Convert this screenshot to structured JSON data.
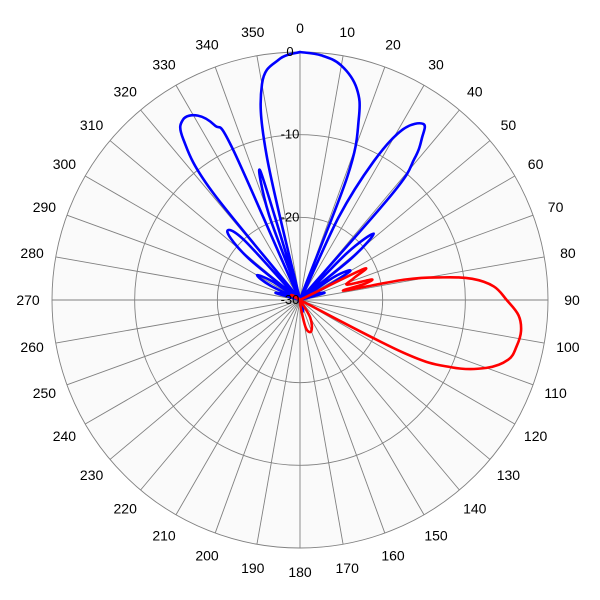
{
  "chart_data": {
    "type": "polar-line",
    "angle_unit": "degrees",
    "angle_zero": "top",
    "angle_direction": "clockwise",
    "angle_ticks": [
      0,
      10,
      20,
      30,
      40,
      50,
      60,
      70,
      80,
      90,
      100,
      110,
      120,
      130,
      140,
      150,
      160,
      170,
      180,
      190,
      200,
      210,
      220,
      230,
      240,
      250,
      260,
      270,
      280,
      290,
      300,
      310,
      320,
      330,
      340,
      350
    ],
    "angle_labels": [
      "0",
      "10",
      "20",
      "30",
      "40",
      "50",
      "60",
      "70",
      "80",
      "90",
      "100",
      "110",
      "120",
      "130",
      "140",
      "150",
      "160",
      "170",
      "180",
      "190",
      "200",
      "210",
      "220",
      "230",
      "240",
      "250",
      "260",
      "270",
      "280",
      "290",
      "300",
      "310",
      "320",
      "330",
      "340",
      "350"
    ],
    "radial_range": [
      -30,
      0
    ],
    "radial_rings": [
      0,
      -10,
      -20,
      -30
    ],
    "radial_labels": [
      "0",
      "-10",
      "-20",
      "-30"
    ],
    "grid": true,
    "plot_background": "#fafafa",
    "grid_color": "#808080",
    "series": [
      {
        "color": "#0000ff",
        "points": [
          [
            0,
            0
          ],
          [
            5,
            -0.3
          ],
          [
            10,
            -1.2
          ],
          [
            15,
            -3.5
          ],
          [
            18,
            -7
          ],
          [
            21,
            -14
          ],
          [
            23,
            -30
          ],
          [
            25,
            -19
          ],
          [
            28,
            -11
          ],
          [
            31,
            -6
          ],
          [
            35,
            -4
          ],
          [
            37,
            -5.5
          ],
          [
            39,
            -8
          ],
          [
            41,
            -13
          ],
          [
            43,
            -30
          ],
          [
            45,
            -22
          ],
          [
            48,
            -18
          ],
          [
            51,
            -22
          ],
          [
            53,
            -30
          ],
          [
            56,
            -25
          ],
          [
            60,
            -23
          ],
          [
            64,
            -27
          ],
          [
            66,
            -30
          ],
          [
            70,
            -28
          ],
          [
            74,
            -27
          ],
          [
            78,
            -30
          ],
          [
            282,
            -30
          ],
          [
            286,
            -27
          ],
          [
            290,
            -28
          ],
          [
            294,
            -30
          ],
          [
            296,
            -26
          ],
          [
            300,
            -24
          ],
          [
            304,
            -26
          ],
          [
            306,
            -30
          ],
          [
            309,
            -22
          ],
          [
            313,
            -18
          ],
          [
            317,
            -20
          ],
          [
            319,
            -30
          ],
          [
            321,
            -13
          ],
          [
            324,
            -6
          ],
          [
            327,
            -4
          ],
          [
            331,
            -4.5
          ],
          [
            334,
            -6.5
          ],
          [
            336,
            -10
          ],
          [
            338,
            -30
          ],
          [
            340,
            -19
          ],
          [
            343,
            -14
          ],
          [
            345,
            -30
          ],
          [
            337,
            -30
          ],
          [
            342,
            -30
          ],
          [
            347,
            -12
          ],
          [
            350,
            -3.5
          ],
          [
            355,
            -0.8
          ],
          [
            360,
            0
          ]
        ]
      },
      {
        "color": "#ff0000",
        "points": [
          [
            58,
            -30
          ],
          [
            64,
            -21.5
          ],
          [
            68,
            -23
          ],
          [
            72,
            -24
          ],
          [
            74,
            -21
          ],
          [
            76,
            -22
          ],
          [
            78,
            -24.5
          ],
          [
            79,
            -17
          ],
          [
            81,
            -12.5
          ],
          [
            83,
            -9
          ],
          [
            86,
            -6.5
          ],
          [
            90,
            -5
          ],
          [
            94,
            -3.5
          ],
          [
            98,
            -3
          ],
          [
            102,
            -3.2
          ],
          [
            106,
            -3.8
          ],
          [
            110,
            -6
          ],
          [
            114,
            -10
          ],
          [
            117,
            -16
          ],
          [
            119,
            -30
          ],
          [
            135,
            -30
          ],
          [
            150,
            -27.5
          ],
          [
            160,
            -26
          ],
          [
            168,
            -26.5
          ],
          [
            174,
            -29
          ],
          [
            178,
            -30
          ]
        ]
      }
    ]
  }
}
